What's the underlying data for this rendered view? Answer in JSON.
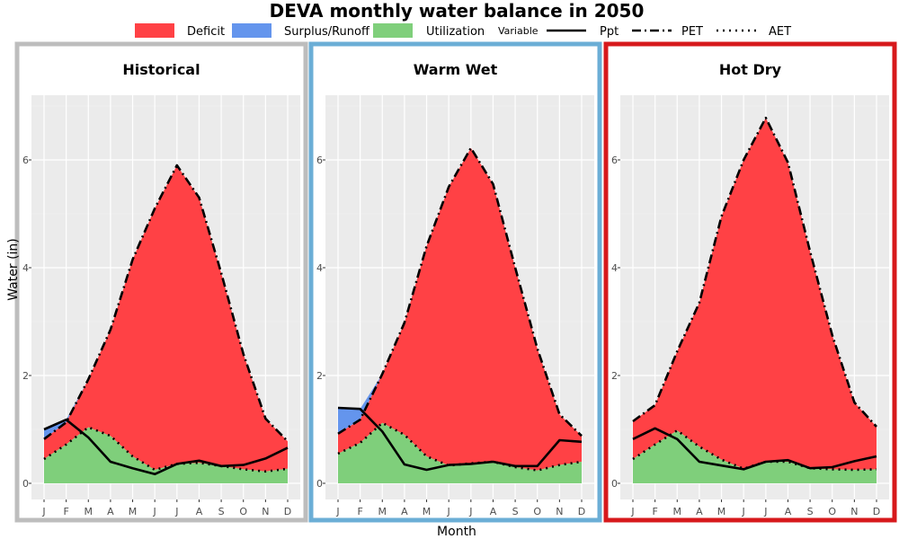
{
  "title": "DEVA monthly water balance in 2050",
  "legend": {
    "fill_items": [
      {
        "label": "Deficit",
        "color": "#FF4145"
      },
      {
        "label": "Surplus/Runoff",
        "color": "#6495ED"
      },
      {
        "label": "Utilization",
        "color": "#7FCF7B"
      }
    ],
    "variable_title": "Variable",
    "line_items": [
      {
        "label": "Ppt",
        "style": "solid"
      },
      {
        "label": "PET",
        "style": "dashdot"
      },
      {
        "label": "AET",
        "style": "dotted"
      }
    ]
  },
  "chart_data": {
    "type": "area",
    "xlabel": "Month",
    "ylabel": "Water (in)",
    "categories": [
      "J",
      "F",
      "M",
      "A",
      "M",
      "J",
      "J",
      "A",
      "S",
      "O",
      "N",
      "D"
    ],
    "y_ticks": [
      0,
      2,
      4,
      6
    ],
    "ylim": [
      -0.3,
      7.2
    ],
    "grid": true,
    "colors": {
      "deficit": "#FF4145",
      "surplus": "#6495ED",
      "utilization": "#7FCF7B",
      "panel_bg": "#EBEBEB"
    },
    "panels": [
      {
        "name": "Historical",
        "border_color": "#BDBDBD",
        "series": [
          {
            "name": "Ppt",
            "values": [
              1.0,
              1.18,
              0.85,
              0.4,
              0.28,
              0.17,
              0.36,
              0.42,
              0.32,
              0.34,
              0.46,
              0.66
            ]
          },
          {
            "name": "PET",
            "values": [
              0.82,
              1.13,
              1.93,
              2.85,
              4.15,
              5.1,
              5.9,
              5.3,
              3.9,
              2.4,
              1.2,
              0.78
            ]
          },
          {
            "name": "AET",
            "values": [
              0.45,
              0.72,
              1.04,
              0.88,
              0.5,
              0.25,
              0.36,
              0.38,
              0.32,
              0.26,
              0.22,
              0.27
            ]
          }
        ]
      },
      {
        "name": "Warm Wet",
        "border_color": "#6BAED6",
        "series": [
          {
            "name": "Ppt",
            "values": [
              1.4,
              1.38,
              0.96,
              0.35,
              0.25,
              0.34,
              0.36,
              0.4,
              0.32,
              0.32,
              0.8,
              0.77
            ]
          },
          {
            "name": "PET",
            "values": [
              0.92,
              1.18,
              2.03,
              2.98,
              4.4,
              5.5,
              6.22,
              5.55,
              4.0,
              2.5,
              1.28,
              0.88
            ]
          },
          {
            "name": "AET",
            "values": [
              0.55,
              0.75,
              1.12,
              0.9,
              0.5,
              0.33,
              0.37,
              0.4,
              0.3,
              0.24,
              0.34,
              0.4
            ]
          }
        ]
      },
      {
        "name": "Hot Dry",
        "border_color": "#D7191C",
        "series": [
          {
            "name": "Ppt",
            "values": [
              0.82,
              1.02,
              0.82,
              0.4,
              0.33,
              0.26,
              0.4,
              0.43,
              0.28,
              0.3,
              0.41,
              0.5
            ]
          },
          {
            "name": "PET",
            "values": [
              1.15,
              1.45,
              2.45,
              3.35,
              4.95,
              6.0,
              6.78,
              5.95,
              4.3,
              2.75,
              1.5,
              1.05
            ]
          },
          {
            "name": "AET",
            "values": [
              0.45,
              0.72,
              0.98,
              0.68,
              0.44,
              0.27,
              0.4,
              0.4,
              0.28,
              0.26,
              0.25,
              0.26
            ]
          }
        ]
      }
    ]
  }
}
